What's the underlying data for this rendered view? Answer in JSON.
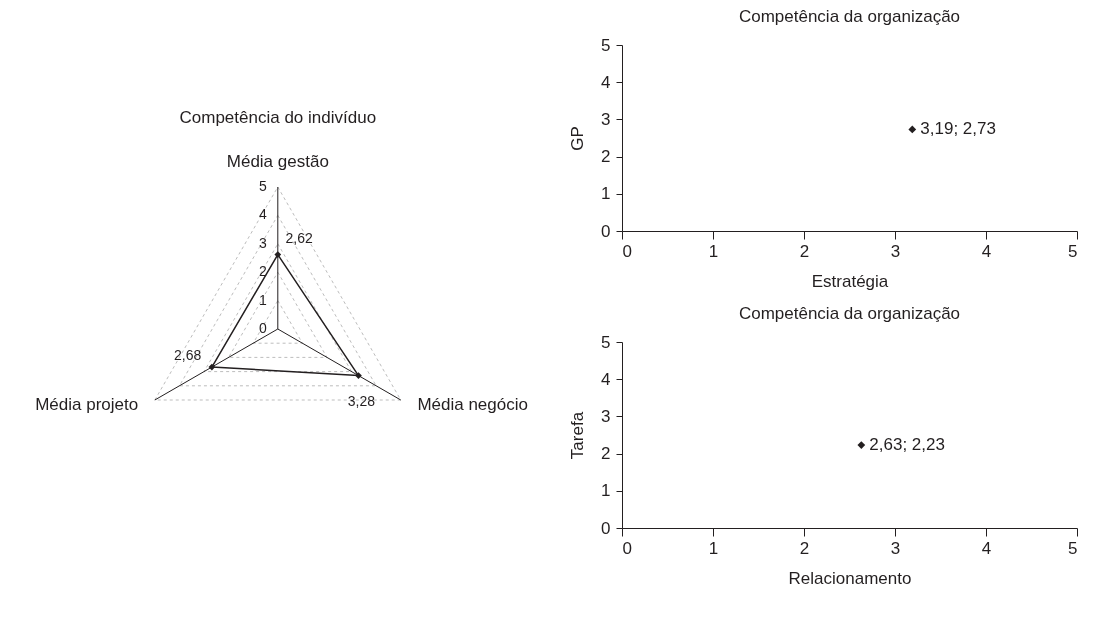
{
  "chart_data": [
    {
      "type": "radar",
      "title": "Competência do indivíduo",
      "categories": [
        "Média gestão",
        "Média negócio",
        "Média projeto"
      ],
      "ylim": [
        0,
        5
      ],
      "yticks": [
        0,
        1,
        2,
        3,
        4,
        5
      ],
      "grid": true,
      "marker": "diamond",
      "series": [
        {
          "color": "#231f20",
          "values": [
            2.62,
            3.28,
            2.68
          ],
          "value_labels": [
            "2,62",
            "3,28",
            "2,68"
          ]
        }
      ]
    },
    {
      "type": "scatter",
      "title": "Competência da organização",
      "xlabel": "Estratégia",
      "ylabel": "GP",
      "x": [
        3.19
      ],
      "xlim": [
        0,
        5
      ],
      "ylim": [
        0,
        5
      ],
      "xticks": [
        0,
        1,
        2,
        3,
        4,
        5
      ],
      "yticks": [
        0,
        1,
        2,
        3,
        4,
        5
      ],
      "marker": "diamond",
      "series": [
        {
          "color": "#231f20",
          "values": [
            2.73
          ],
          "value_labels": [
            "3,19; 2,73"
          ]
        }
      ]
    },
    {
      "type": "scatter",
      "title": "Competência da organização",
      "xlabel": "Relacionamento",
      "ylabel": "Tarefa",
      "x": [
        2.63
      ],
      "xlim": [
        0,
        5
      ],
      "ylim": [
        0,
        5
      ],
      "xticks": [
        0,
        1,
        2,
        3,
        4,
        5
      ],
      "yticks": [
        0,
        1,
        2,
        3,
        4,
        5
      ],
      "marker": "diamond",
      "series": [
        {
          "color": "#231f20",
          "values": [
            2.23
          ],
          "value_labels": [
            "2,63; 2,23"
          ]
        }
      ]
    }
  ]
}
